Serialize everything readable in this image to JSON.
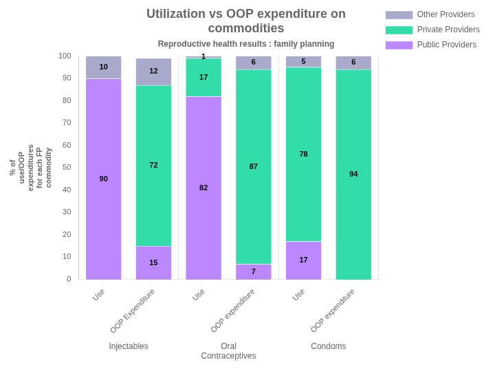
{
  "chart_data": {
    "type": "bar",
    "title": "Utilization vs OOP expenditure on\ncommodities",
    "subtitle": "Reproductive health results : family planning",
    "categories": [
      "Use",
      "OOP Expenditure",
      "Use",
      "OOP expenditure",
      "Use",
      "OOP expenditure"
    ],
    "group_labels": [
      "Injectables",
      "Oral\nContraceptives",
      "Condoms"
    ],
    "series": [
      {
        "name": "Public Providers",
        "color": "#bb88ff",
        "values": [
          90,
          15,
          82,
          7,
          17,
          0
        ]
      },
      {
        "name": "Private Providers",
        "color": "#33ddaa",
        "values": [
          0,
          72,
          17,
          87,
          78,
          94
        ]
      },
      {
        "name": "Other Providers",
        "color": "#aaaacc",
        "values": [
          10,
          12,
          1,
          6,
          5,
          6
        ]
      }
    ],
    "ylabel": "% of\nuse/OOP\nexpenditures\nfor each FP\ncommodity",
    "ylim": [
      0,
      100
    ],
    "yticks": [
      0,
      10,
      20,
      30,
      40,
      50,
      60,
      70,
      80,
      90,
      100
    ],
    "stacked": true,
    "data_labels": true,
    "legend": "right",
    "grid": false
  }
}
